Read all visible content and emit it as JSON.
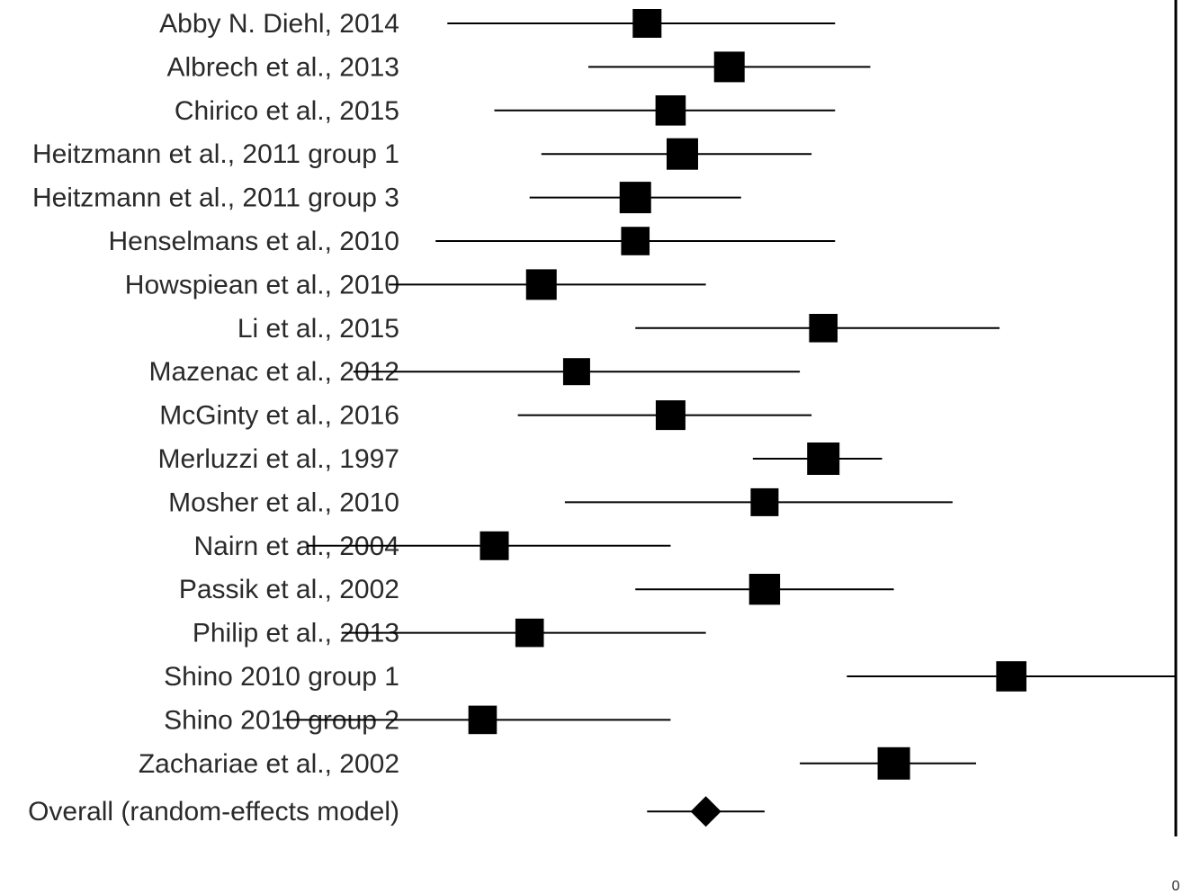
{
  "chart_data": {
    "type": "forest",
    "title": "",
    "xlabel": "",
    "ylabel": "",
    "xlim": [
      -1.0,
      0.0
    ],
    "reference_line": 0.0,
    "x_tick_labels": [
      "0"
    ],
    "studies": [
      {
        "label": "Abby N. Diehl, 2014",
        "estimate": -0.45,
        "ci": [
          -0.62,
          -0.29
        ],
        "weight": 0.8
      },
      {
        "label": "Albrech et al., 2013",
        "estimate": -0.38,
        "ci": [
          -0.5,
          -0.26
        ],
        "weight": 0.9
      },
      {
        "label": "Chirico et al., 2015",
        "estimate": -0.43,
        "ci": [
          -0.58,
          -0.29
        ],
        "weight": 0.88
      },
      {
        "label": "Heitzmann et al., 2011 group 1",
        "estimate": -0.42,
        "ci": [
          -0.54,
          -0.31
        ],
        "weight": 0.95
      },
      {
        "label": "Heitzmann et al., 2011 group 3",
        "estimate": -0.46,
        "ci": [
          -0.55,
          -0.37
        ],
        "weight": 0.95
      },
      {
        "label": "Henselmans et al., 2010",
        "estimate": -0.46,
        "ci": [
          -0.63,
          -0.29
        ],
        "weight": 0.78
      },
      {
        "label": "Howspiean et al., 2010",
        "estimate": -0.54,
        "ci": [
          -0.67,
          -0.4
        ],
        "weight": 0.9
      },
      {
        "label": "Li et al., 2015",
        "estimate": -0.3,
        "ci": [
          -0.46,
          -0.15
        ],
        "weight": 0.78
      },
      {
        "label": "Mazenac et al., 2012",
        "estimate": -0.51,
        "ci": [
          -0.7,
          -0.32
        ],
        "weight": 0.7
      },
      {
        "label": "McGinty et al., 2016",
        "estimate": -0.43,
        "ci": [
          -0.56,
          -0.31
        ],
        "weight": 0.85
      },
      {
        "label": "Merluzzi et al., 1997",
        "estimate": -0.3,
        "ci": [
          -0.36,
          -0.25
        ],
        "weight": 1.0
      },
      {
        "label": "Mosher et al., 2010",
        "estimate": -0.35,
        "ci": [
          -0.52,
          -0.19
        ],
        "weight": 0.75
      },
      {
        "label": "Nairn et al., 2004",
        "estimate": -0.58,
        "ci": [
          -0.74,
          -0.43
        ],
        "weight": 0.8
      },
      {
        "label": "Passik et al., 2002",
        "estimate": -0.35,
        "ci": [
          -0.46,
          -0.24
        ],
        "weight": 0.92
      },
      {
        "label": "Philip et al., 2013",
        "estimate": -0.55,
        "ci": [
          -0.71,
          -0.4
        ],
        "weight": 0.78
      },
      {
        "label": "Shino 2010 group 1",
        "estimate": -0.14,
        "ci": [
          -0.28,
          0.0
        ],
        "weight": 0.88
      },
      {
        "label": "Shino 2010 group 2",
        "estimate": -0.59,
        "ci": [
          -0.76,
          -0.43
        ],
        "weight": 0.78
      },
      {
        "label": "Zachariae et al., 2002",
        "estimate": -0.24,
        "ci": [
          -0.32,
          -0.17
        ],
        "weight": 1.0
      }
    ],
    "overall": {
      "label": "Overall (random-effects model)",
      "estimate": -0.4,
      "ci": [
        -0.45,
        -0.35
      ]
    }
  }
}
